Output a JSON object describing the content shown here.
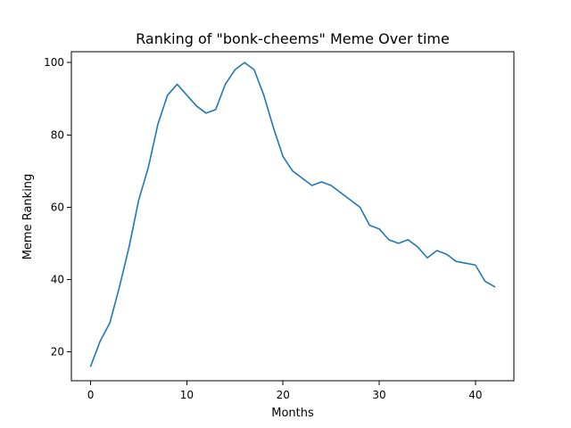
{
  "chart_data": {
    "type": "line",
    "title": "Ranking of \"bonk-cheems\" Meme Over time",
    "xlabel": "Months",
    "ylabel": "Meme Ranking",
    "xlim": [
      -2,
      44
    ],
    "ylim": [
      12,
      103
    ],
    "xticks": [
      0,
      10,
      20,
      30,
      40
    ],
    "yticks": [
      20,
      40,
      60,
      80,
      100
    ],
    "grid": false,
    "legend": "none",
    "series": [
      {
        "color": "#1f77b4",
        "x": [
          0,
          1,
          2,
          3,
          4,
          5,
          6,
          7,
          8,
          9,
          10,
          11,
          12,
          13,
          14,
          15,
          16,
          17,
          18,
          19,
          20,
          21,
          22,
          23,
          24,
          25,
          26,
          27,
          28,
          29,
          30,
          31,
          32,
          33,
          34,
          35,
          36,
          37,
          38,
          39,
          40,
          41,
          42
        ],
        "y": [
          16,
          23,
          28,
          38,
          49,
          62,
          71,
          83,
          91,
          94,
          91,
          88,
          86,
          87,
          94,
          98,
          100,
          98,
          91,
          82,
          74,
          70,
          68,
          66,
          67,
          66,
          64,
          62,
          60,
          55,
          54,
          51,
          50,
          51,
          49,
          46,
          48,
          47,
          45,
          44.5,
          44,
          39.5,
          38
        ]
      }
    ]
  }
}
